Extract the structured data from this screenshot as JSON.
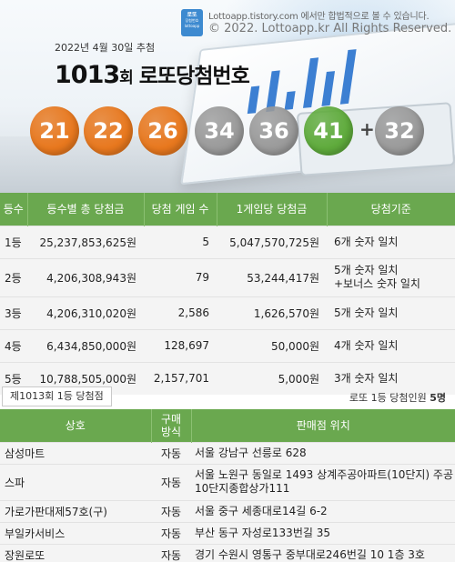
{
  "header": {
    "logo_text": "로또\n당첨번호\nlottoapp",
    "site_notice": "Lottoapp.tistory.com 에서만 합법적으로 볼 수 있습니다.",
    "copyright": "© 2022. Lottoapp.kr All Rights Reserved.",
    "draw_date": "2022년 4월 30일 추첨",
    "round_number": "1013",
    "round_suffix": "회",
    "round_title": "로또당첨번호"
  },
  "winning_numbers": [
    {
      "value": "21",
      "color": "#e8781e"
    },
    {
      "value": "22",
      "color": "#e8781e"
    },
    {
      "value": "26",
      "color": "#e8781e"
    },
    {
      "value": "34",
      "color": "#9a9a9a"
    },
    {
      "value": "36",
      "color": "#9a9a9a"
    },
    {
      "value": "41",
      "color": "#5fab3c"
    }
  ],
  "plus_sign": "+",
  "bonus_number": {
    "value": "32",
    "color": "#9a9a9a"
  },
  "prize_table": {
    "headers": [
      "등수",
      "등수별 총 당첨금",
      "당첨 게임 수",
      "1게임당 당첨금",
      "당첨기준"
    ],
    "rows": [
      {
        "rank": "1등",
        "total": "25,237,853,625원",
        "games": "5",
        "per_game": "5,047,570,725원",
        "criteria": "6개 숫자 일치",
        "criteria2": ""
      },
      {
        "rank": "2등",
        "total": "4,206,308,943원",
        "games": "79",
        "per_game": "53,244,417원",
        "criteria": "5개 숫자 일치",
        "criteria2": "+보너스 숫자 일치"
      },
      {
        "rank": "3등",
        "total": "4,206,310,020원",
        "games": "2,586",
        "per_game": "1,626,570원",
        "criteria": "5개 숫자 일치",
        "criteria2": ""
      },
      {
        "rank": "4등",
        "total": "6,434,850,000원",
        "games": "128,697",
        "per_game": "50,000원",
        "criteria": "4개 숫자 일치",
        "criteria2": ""
      },
      {
        "rank": "5등",
        "total": "10,788,505,000원",
        "games": "2,157,701",
        "per_game": "5,000원",
        "criteria": "3개 숫자 일치",
        "criteria2": ""
      }
    ]
  },
  "winners": {
    "tab_label": "제1013회 1등 당첨점",
    "count_label": "로또 1등 당첨인원",
    "count_value": "5명",
    "headers": {
      "name": "상호",
      "method_line1": "구매",
      "method_line2": "방식",
      "address": "판매점 위치"
    },
    "rows": [
      {
        "name": "삼성마트",
        "method": "자동",
        "address": "서울 강남구 선릉로 628"
      },
      {
        "name": "스파",
        "method": "자동",
        "address": "서울 노원구 동일로 1493 상계주공아파트(10단지) 주공10단지종합상가111"
      },
      {
        "name": "가로가판대제57호(구)",
        "method": "자동",
        "address": "서울 중구 세종대로14길 6-2"
      },
      {
        "name": "부일카서비스",
        "method": "자동",
        "address": "부산 동구 자성로133번길 35"
      },
      {
        "name": "장원로또",
        "method": "자동",
        "address": "경기 수원시 영통구 중부대로246번길 10 1층 3호"
      }
    ]
  }
}
